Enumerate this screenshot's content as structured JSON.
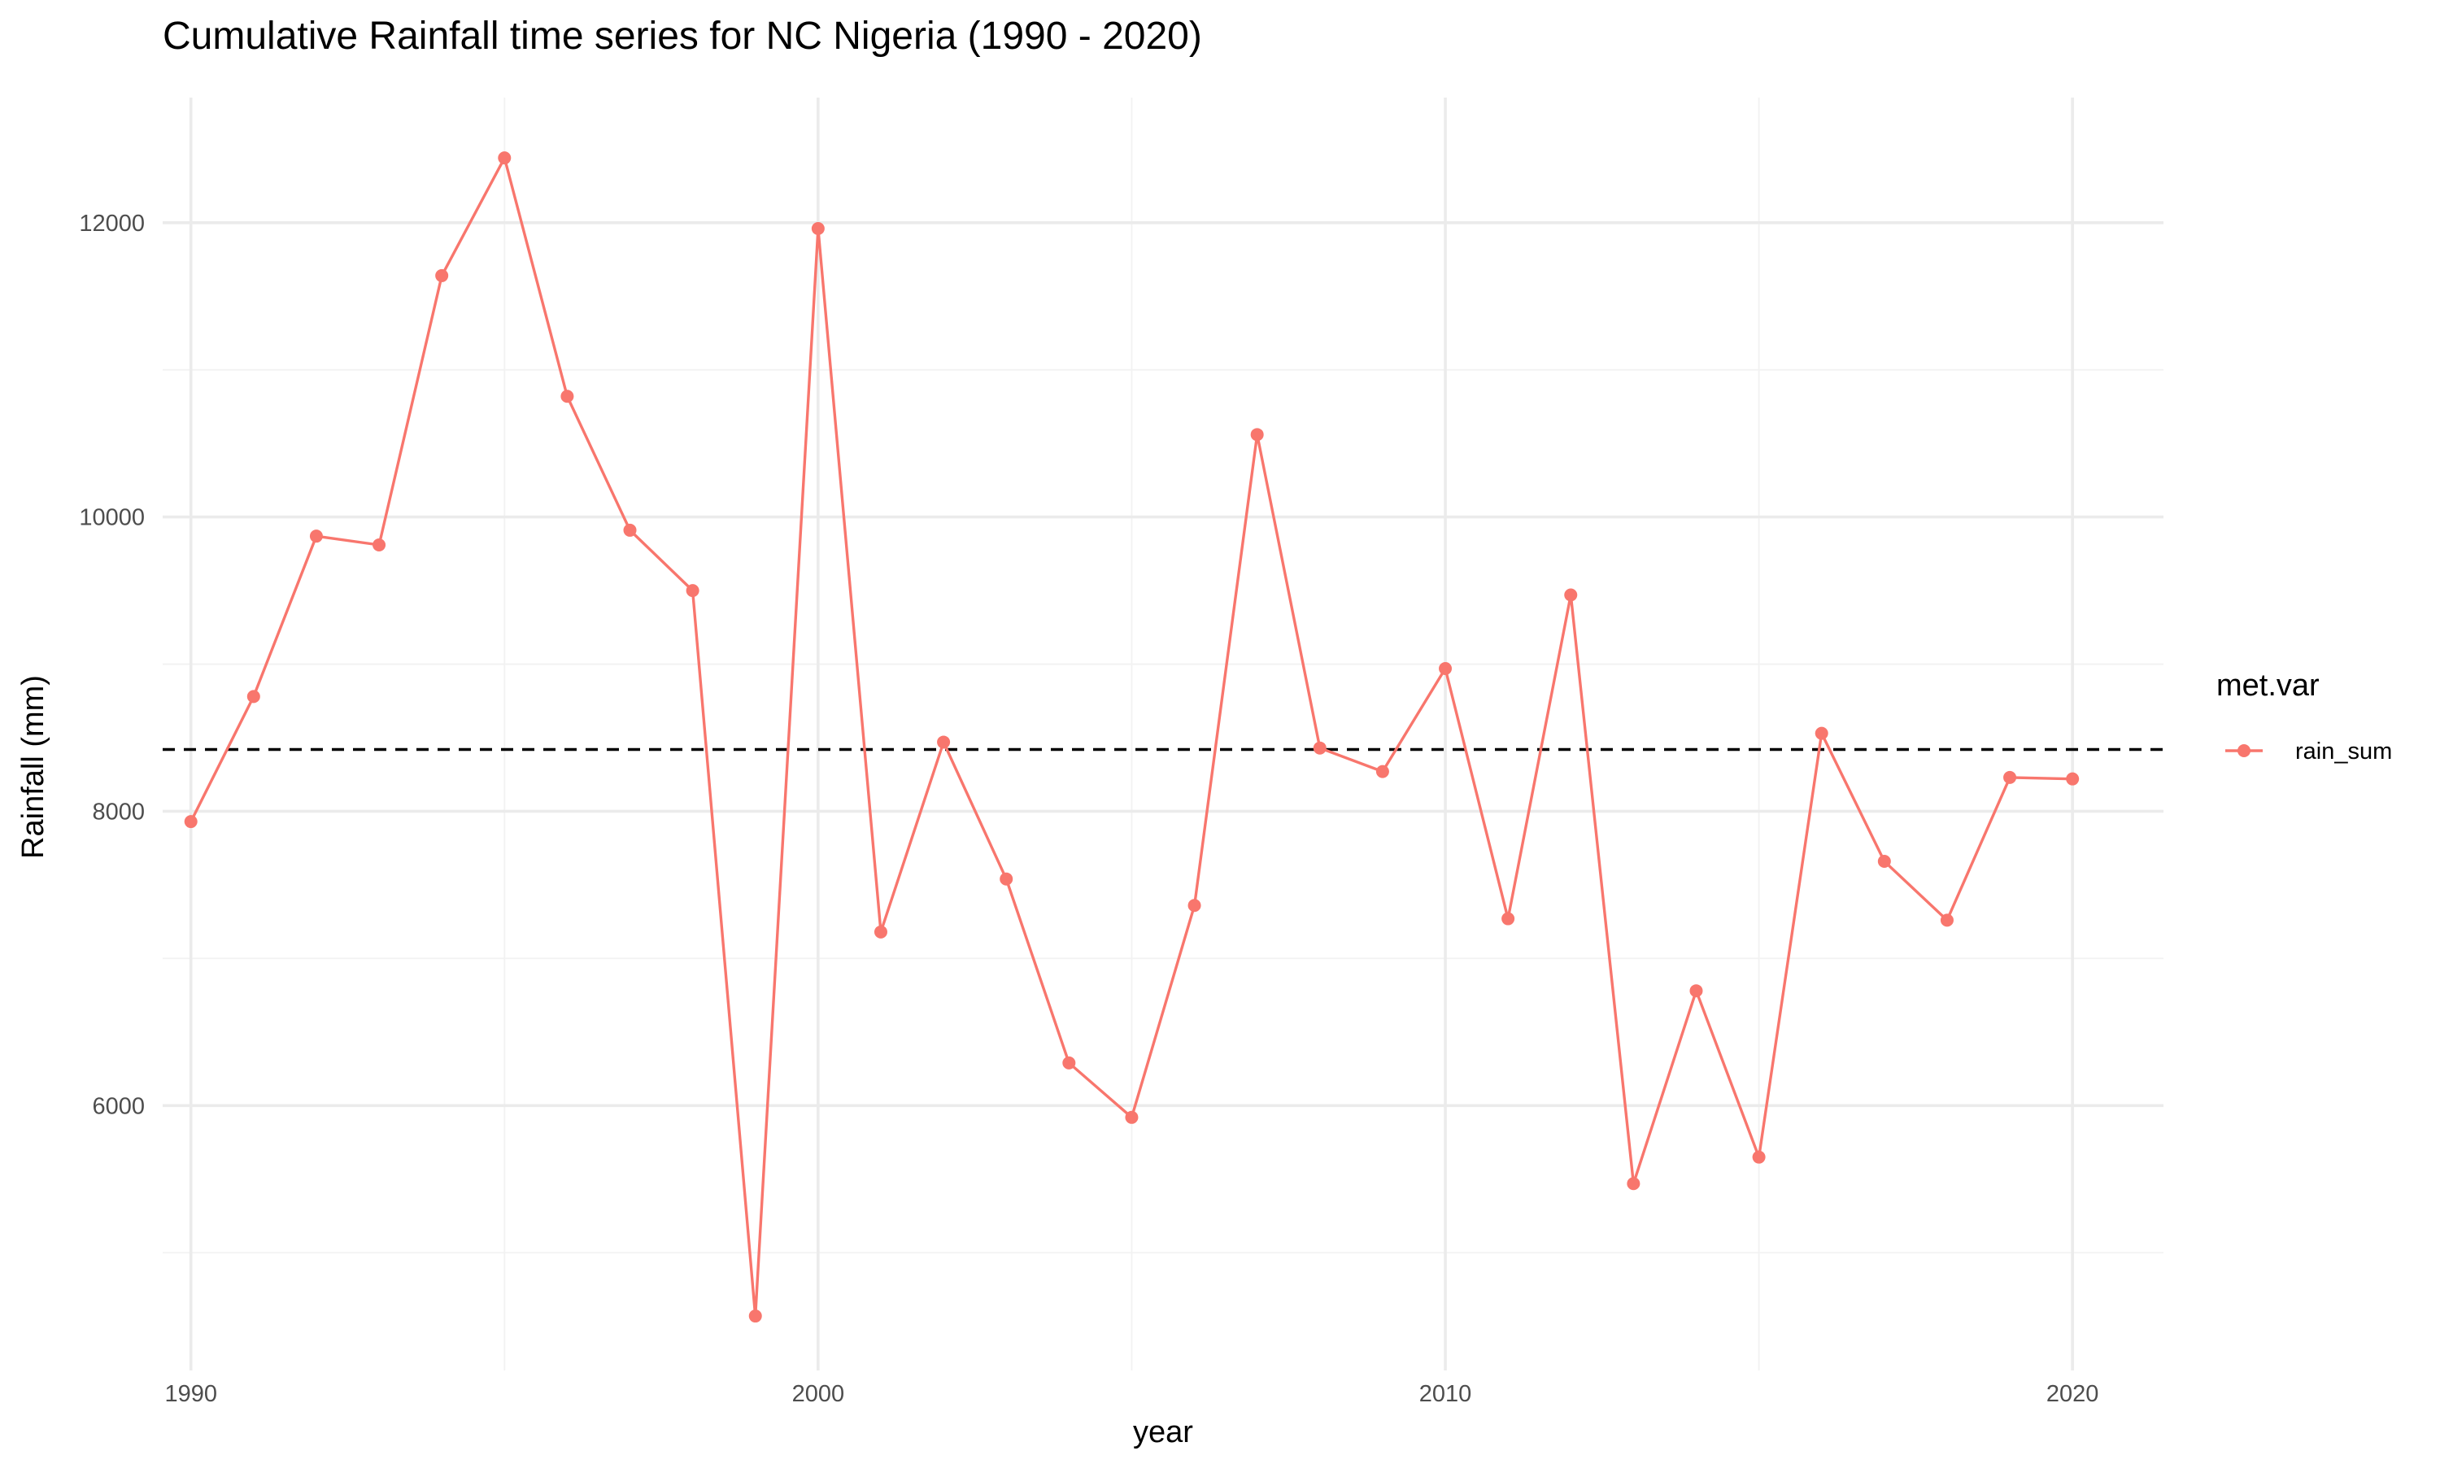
{
  "chart_data": {
    "type": "line",
    "title": "Cumulative Rainfall time series for NC Nigeria (1990 - 2020)",
    "xlabel": "year",
    "ylabel": "Rainfall (mm)",
    "x": [
      1990,
      1991,
      1992,
      1993,
      1994,
      1995,
      1996,
      1997,
      1998,
      1999,
      2000,
      2001,
      2002,
      2003,
      2004,
      2005,
      2006,
      2007,
      2008,
      2009,
      2010,
      2011,
      2012,
      2013,
      2014,
      2015,
      2016,
      2017,
      2018,
      2019,
      2020
    ],
    "series": [
      {
        "name": "rain_sum",
        "color": "#F8766D",
        "values": [
          7930,
          8780,
          9870,
          9810,
          11640,
          12440,
          10820,
          9910,
          9500,
          4570,
          11960,
          7180,
          8470,
          7540,
          6290,
          5920,
          7360,
          10560,
          8430,
          8270,
          8970,
          7270,
          9470,
          5470,
          6780,
          5650,
          8530,
          7660,
          7260,
          8230,
          8220
        ]
      }
    ],
    "reference_line": {
      "y": 8420,
      "style": "dashed",
      "color": "#000000"
    },
    "xlim": [
      1989.55,
      2021.45
    ],
    "ylim": [
      4200,
      12850
    ],
    "x_ticks": [
      1990,
      2000,
      2010,
      2020
    ],
    "x_minor_ticks": [
      1995,
      2005,
      2015
    ],
    "y_ticks": [
      6000,
      8000,
      10000,
      12000
    ],
    "y_minor_ticks": [
      5000,
      7000,
      9000,
      11000
    ],
    "grid": true,
    "legend": {
      "title": "met.var",
      "position": "right"
    }
  }
}
